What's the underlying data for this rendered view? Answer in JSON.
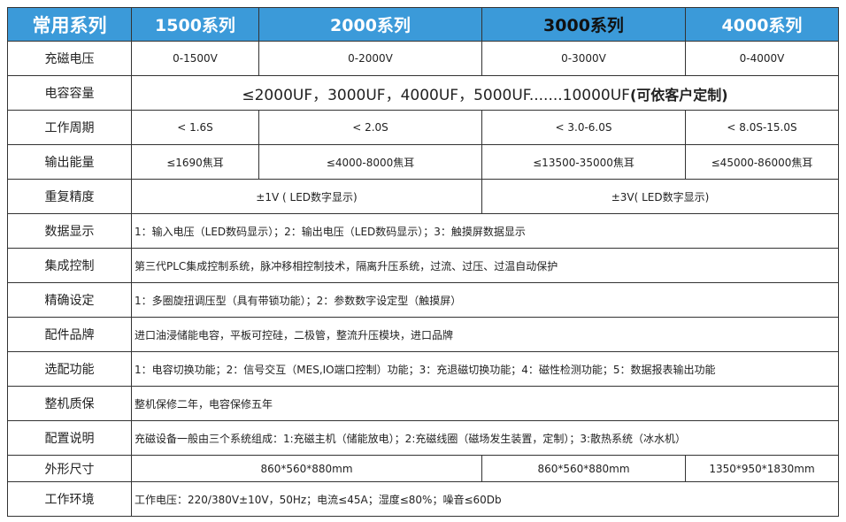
{
  "header": [
    "常用系列",
    "1500系列",
    "2000系列",
    "3000系列",
    "4000系列"
  ],
  "colors": {
    "header_bg": "#3b9ad9",
    "header_text": "#ffffff",
    "highlight_header_text": "#111111"
  },
  "rows": {
    "voltage": {
      "label": "充磁电压",
      "values": [
        "0-1500V",
        "0-2000V",
        "0-3000V",
        "0-4000V"
      ]
    },
    "capacitance": {
      "label": "电容容量",
      "value": "≤2000UF，3000UF，4000UF，5000UF.......10000UF",
      "value_bold": "(可依客户定制)"
    },
    "cycle": {
      "label": "工作周期",
      "values": [
        "< 1.6S",
        "< 2.0S",
        "< 3.0-6.0S",
        "< 8.0S-15.0S"
      ]
    },
    "energy": {
      "label": "输出能量",
      "values": [
        "≤1690焦耳",
        "≤4000-8000焦耳",
        "≤13500-35000焦耳",
        "≤45000-86000焦耳"
      ]
    },
    "precision": {
      "label": "重复精度",
      "values": [
        "±1V ( LED数字显示)",
        "±3V( LED数字显示)"
      ]
    },
    "display": {
      "label": "数据显示",
      "value": "1：输入电压（LED数码显示）；2：输出电压（LED数码显示）；3：触摸屏数据显示"
    },
    "control": {
      "label": "集成控制",
      "value": "第三代PLC集成控制系统，脉冲移相控制技术，隔离升压系统，过流、过压、过温自动保护"
    },
    "setting": {
      "label": "精确设定",
      "value": "1：多圈旋扭调压型（具有带锁功能）；2：参数数字设定型（触摸屏）"
    },
    "parts": {
      "label": "配件品牌",
      "value": "进口油浸储能电容，平板可控硅，二极管，整流升压模块，进口品牌"
    },
    "options": {
      "label": "选配功能",
      "value": "1：电容切换功能；2：信号交互（MES,IO端口控制）功能；3：充退磁切换功能；4：磁性检测功能；5：数据报表输出功能"
    },
    "warranty": {
      "label": "整机质保",
      "value": "整机保修二年，电容保修五年"
    },
    "config": {
      "label": "配置说明",
      "value": "充磁设备一般由三个系统组成：1:充磁主机（储能放电）；2:充磁线圈（磁场发生装置，定制）；3:散热系统（冰水机）"
    },
    "dimensions": {
      "label": "外形尺寸",
      "values": [
        "860*560*880mm",
        "860*560*880mm",
        "1350*950*1830mm"
      ]
    },
    "environment": {
      "label": "工作环境",
      "value": "工作电压：220/380V±10V，50Hz；电流≤45A；湿度≤80%；噪音≤60Db"
    }
  }
}
